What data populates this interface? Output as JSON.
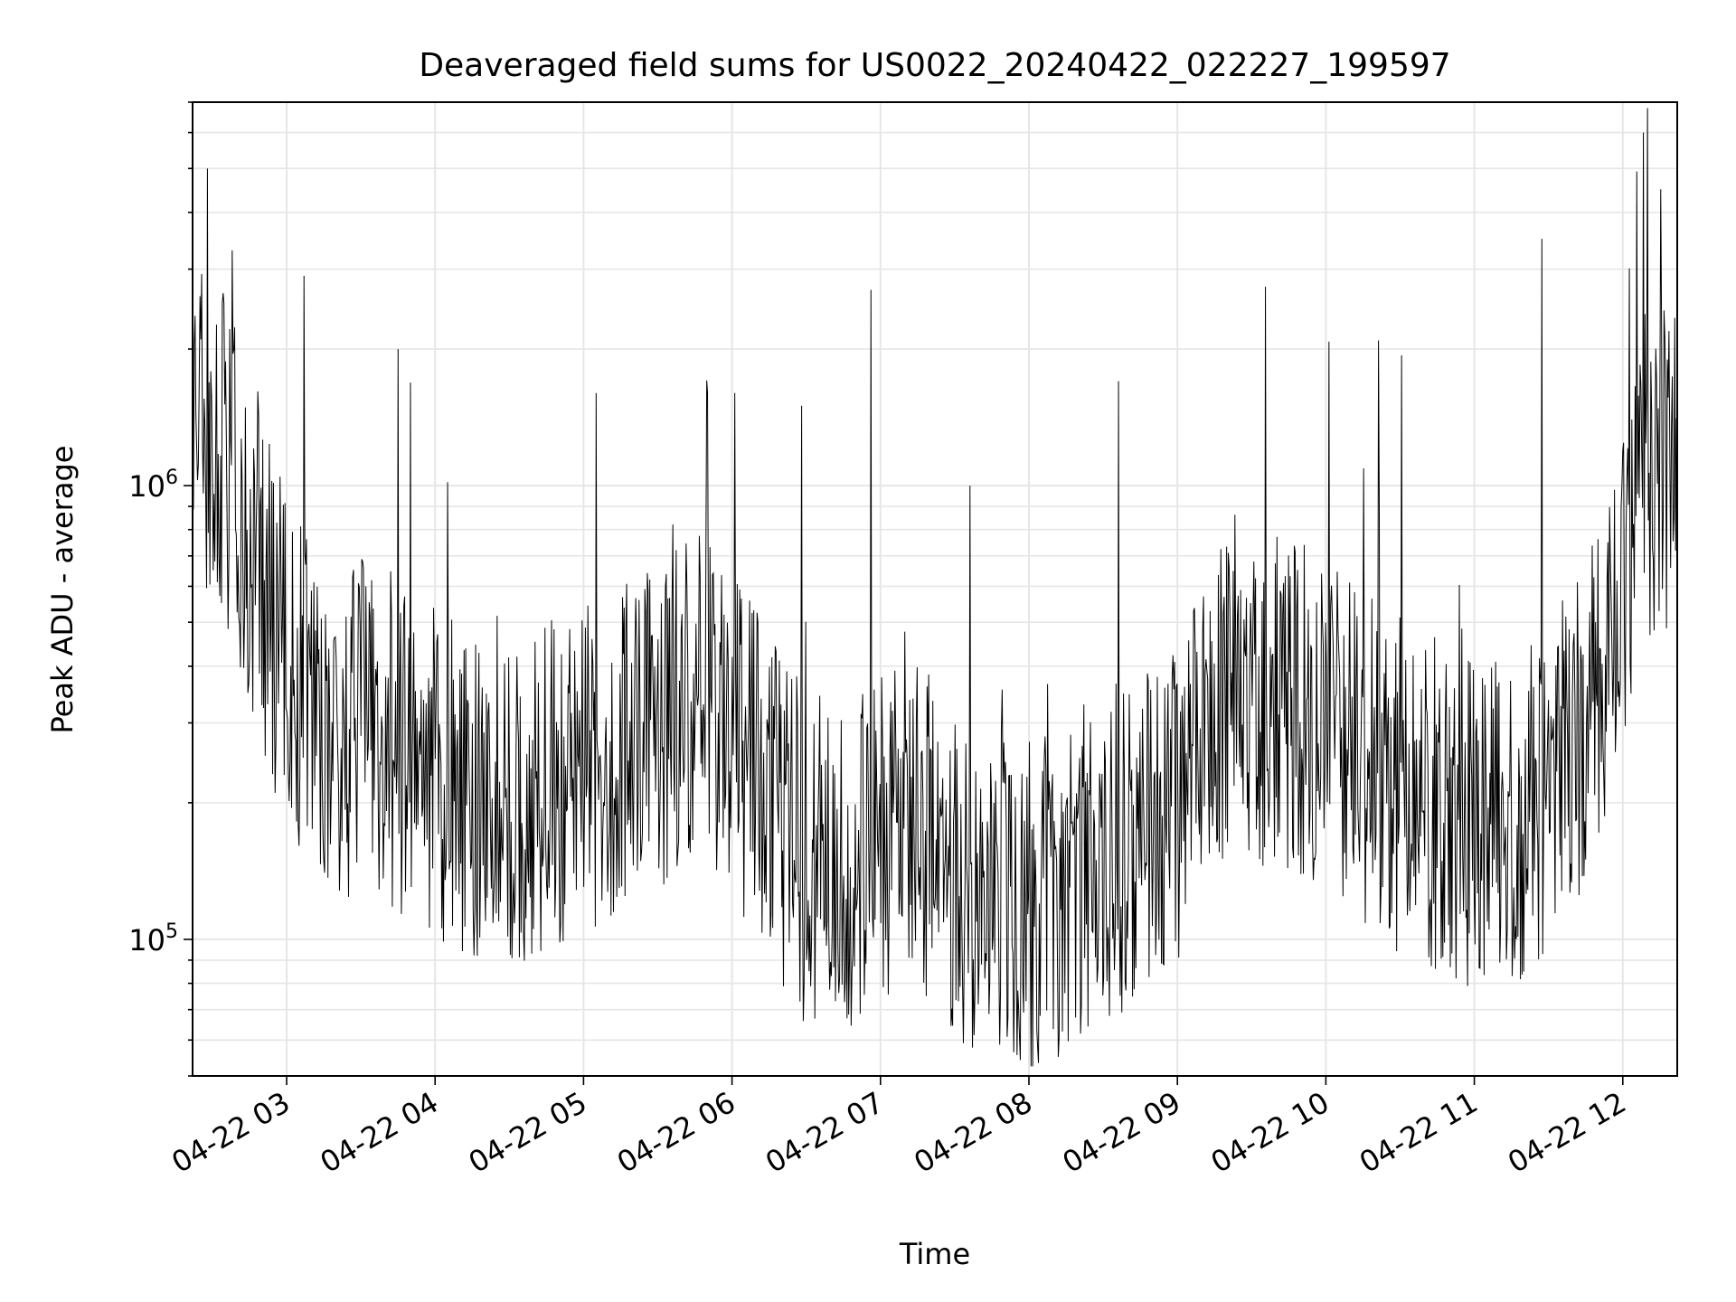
{
  "chart_data": {
    "type": "line",
    "title": "Deaveraged field sums for US0022_20240422_022227_199597",
    "xlabel": "Time",
    "ylabel": "Peak ADU - average",
    "y_scale": "log",
    "xlim": [
      "2024-04-22 02:22",
      "2024-04-22 12:22"
    ],
    "ylim": [
      50000,
      7000000
    ],
    "x_tick_labels": [
      "04-22 03",
      "04-22 04",
      "04-22 05",
      "04-22 06",
      "04-22 07",
      "04-22 08",
      "04-22 09",
      "04-22 10",
      "04-22 11",
      "04-22 12"
    ],
    "y_tick_labels": [
      {
        "value": 100000,
        "base": "10",
        "exp": "5"
      },
      {
        "value": 1000000,
        "base": "10",
        "exp": "6"
      }
    ],
    "grid": true,
    "legend": "none",
    "line_color": "#000000",
    "grid_color": "#e6e6e6",
    "series": [
      {
        "x": [
          "2024-04-22 02:22",
          "2024-04-22 02:30",
          "2024-04-22 02:45",
          "2024-04-22 03:00",
          "2024-04-22 03:15",
          "2024-04-22 03:30",
          "2024-04-22 03:45",
          "2024-04-22 04:00",
          "2024-04-22 04:15",
          "2024-04-22 04:30",
          "2024-04-22 04:45",
          "2024-04-22 05:00",
          "2024-04-22 05:15",
          "2024-04-22 05:30",
          "2024-04-22 05:45",
          "2024-04-22 06:00",
          "2024-04-22 06:15",
          "2024-04-22 06:30",
          "2024-04-22 06:45",
          "2024-04-22 07:00",
          "2024-04-22 07:15",
          "2024-04-22 07:30",
          "2024-04-22 07:45",
          "2024-04-22 08:00",
          "2024-04-22 08:15",
          "2024-04-22 08:30",
          "2024-04-22 08:45",
          "2024-04-22 09:00",
          "2024-04-22 09:15",
          "2024-04-22 09:30",
          "2024-04-22 09:45",
          "2024-04-22 10:00",
          "2024-04-22 10:15",
          "2024-04-22 10:30",
          "2024-04-22 10:45",
          "2024-04-22 11:00",
          "2024-04-22 11:15",
          "2024-04-22 11:30",
          "2024-04-22 11:45",
          "2024-04-22 12:00",
          "2024-04-22 12:10",
          "2024-04-22 12:22"
        ],
        "y": [
          1500000,
          1300000,
          800000,
          400000,
          280000,
          300000,
          270000,
          240000,
          200000,
          200000,
          220000,
          240000,
          260000,
          280000,
          350000,
          300000,
          200000,
          150000,
          140000,
          180000,
          170000,
          140000,
          130000,
          120000,
          130000,
          150000,
          170000,
          200000,
          300000,
          350000,
          330000,
          300000,
          250000,
          220000,
          200000,
          170000,
          180000,
          220000,
          300000,
          600000,
          1100000,
          1000000
        ]
      }
    ],
    "spikes": [
      {
        "x": "2024-04-22 02:28",
        "y": 5000000
      },
      {
        "x": "2024-04-22 02:38",
        "y": 3300000
      },
      {
        "x": "2024-04-22 03:07",
        "y": 2900000
      },
      {
        "x": "2024-04-22 03:45",
        "y": 2000000
      },
      {
        "x": "2024-04-22 05:05",
        "y": 1600000
      },
      {
        "x": "2024-04-22 06:01",
        "y": 1600000
      },
      {
        "x": "2024-04-22 06:28",
        "y": 1500000
      },
      {
        "x": "2024-04-22 06:56",
        "y": 2700000
      },
      {
        "x": "2024-04-22 07:36",
        "y": 1000000
      },
      {
        "x": "2024-04-22 08:36",
        "y": 1700000
      },
      {
        "x": "2024-04-22 11:27",
        "y": 3500000
      },
      {
        "x": "2024-04-22 12:08",
        "y": 6000000
      },
      {
        "x": "2024-04-22 12:15",
        "y": 4500000
      }
    ]
  }
}
